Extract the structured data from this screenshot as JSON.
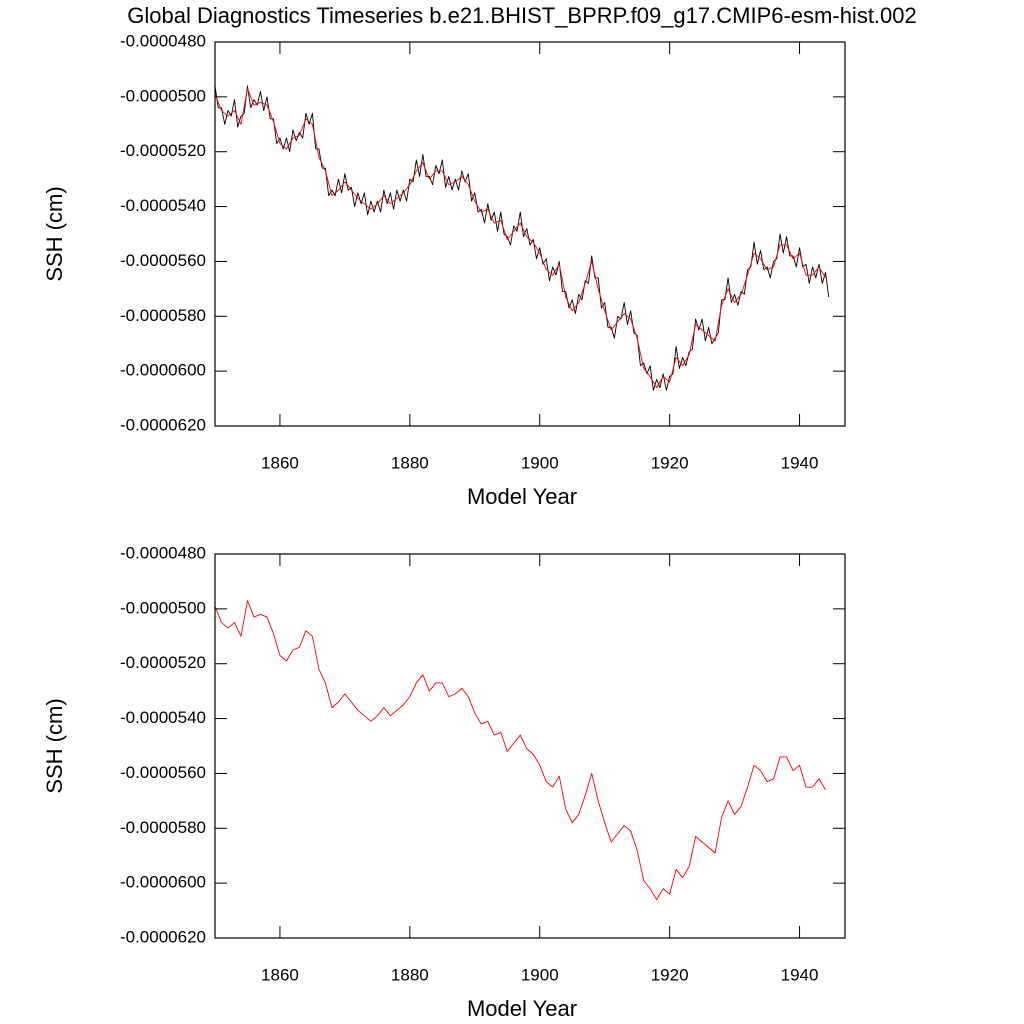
{
  "title": "Global Diagnostics Timeseries b.e21.BHIST_BPRP.f09_g17.CMIP6-esm-hist.002",
  "chart_data": [
    {
      "type": "line",
      "xlabel": "Model Year",
      "ylabel": "SSH (cm)",
      "xlim": [
        1850,
        1947
      ],
      "xticks": [
        1860,
        1880,
        1900,
        1920,
        1940
      ],
      "ylim": [
        -6.2e-05,
        -4.8e-05
      ],
      "yticks": [
        {
          "value": -6.2e-05,
          "label": "-0.0000620"
        },
        {
          "value": -6e-05,
          "label": "-0.0000600"
        },
        {
          "value": -5.8e-05,
          "label": "-0.0000580"
        },
        {
          "value": -5.6e-05,
          "label": "-0.0000560"
        },
        {
          "value": -5.4e-05,
          "label": "-0.0000540"
        },
        {
          "value": -5.2e-05,
          "label": "-0.0000520"
        },
        {
          "value": -5e-05,
          "label": "-0.0000500"
        },
        {
          "value": -4.8e-05,
          "label": "-0.0000480"
        }
      ],
      "series": [
        {
          "color": "#000000",
          "x": [
            1850,
            1850.5,
            1851,
            1851.5,
            1852,
            1852.5,
            1853,
            1853.5,
            1854,
            1854.5,
            1855,
            1855.5,
            1856,
            1856.5,
            1857,
            1857.5,
            1858,
            1858.5,
            1859,
            1859.5,
            1860,
            1860.5,
            1861,
            1861.5,
            1862,
            1862.5,
            1863,
            1863.5,
            1864,
            1864.5,
            1865,
            1865.5,
            1866,
            1866.5,
            1867,
            1867.5,
            1868,
            1868.5,
            1869,
            1869.5,
            1870,
            1870.5,
            1871,
            1871.5,
            1872,
            1872.5,
            1873,
            1873.5,
            1874,
            1874.5,
            1875,
            1875.5,
            1876,
            1876.5,
            1877,
            1877.5,
            1878,
            1878.5,
            1879,
            1879.5,
            1880,
            1880.5,
            1881,
            1881.5,
            1882,
            1882.5,
            1883,
            1883.5,
            1884,
            1884.5,
            1885,
            1885.5,
            1886,
            1886.5,
            1887,
            1887.5,
            1888,
            1888.5,
            1889,
            1889.5,
            1890,
            1890.5,
            1891,
            1891.5,
            1892,
            1892.5,
            1893,
            1893.5,
            1894,
            1894.5,
            1895,
            1895.5,
            1896,
            1896.5,
            1897,
            1897.5,
            1898,
            1898.5,
            1899,
            1899.5,
            1900,
            1900.5,
            1901,
            1901.5,
            1902,
            1902.5,
            1903,
            1903.5,
            1904,
            1904.5,
            1905,
            1905.5,
            1906,
            1906.5,
            1907,
            1907.5,
            1908,
            1908.5,
            1909,
            1909.5,
            1910,
            1910.5,
            1911,
            1911.5,
            1912,
            1912.5,
            1913,
            1913.5,
            1914,
            1914.5,
            1915,
            1915.5,
            1916,
            1916.5,
            1917,
            1917.5,
            1918,
            1918.5,
            1919,
            1919.5,
            1920,
            1920.5,
            1921,
            1921.5,
            1922,
            1922.5,
            1923,
            1923.5,
            1924,
            1924.5,
            1925,
            1925.5,
            1926,
            1926.5,
            1927,
            1927.5,
            1928,
            1928.5,
            1929,
            1929.5,
            1930,
            1930.5,
            1931,
            1931.5,
            1932,
            1932.5,
            1933,
            1933.5,
            1934,
            1934.5,
            1935,
            1935.5,
            1936,
            1936.5,
            1937,
            1937.5,
            1938,
            1938.5,
            1939,
            1939.5,
            1940,
            1940.5,
            1941,
            1941.5,
            1942,
            1942.5,
            1943,
            1943.5,
            1944,
            1944.5
          ],
          "values": [
            -4.96e-05,
            -5.04e-05,
            -5.04e-05,
            -5.1e-05,
            -5.05e-05,
            -5.07e-05,
            -5.01e-05,
            -5.11e-05,
            -5.07e-05,
            -5.06e-05,
            -4.96e-05,
            -5.04e-05,
            -5.01e-05,
            -5.03e-05,
            -4.98e-05,
            -5.05e-05,
            -5e-05,
            -5.08e-05,
            -5.08e-05,
            -5.17e-05,
            -5.15e-05,
            -5.19e-05,
            -5.15e-05,
            -5.2e-05,
            -5.12e-05,
            -5.16e-05,
            -5.13e-05,
            -5.15e-05,
            -5.06e-05,
            -5.1e-05,
            -5.06e-05,
            -5.19e-05,
            -5.19e-05,
            -5.26e-05,
            -5.26e-05,
            -5.36e-05,
            -5.34e-05,
            -5.36e-05,
            -5.3e-05,
            -5.35e-05,
            -5.28e-05,
            -5.34e-05,
            -5.33e-05,
            -5.4e-05,
            -5.35e-05,
            -5.39e-05,
            -5.35e-05,
            -5.43e-05,
            -5.38e-05,
            -5.42e-05,
            -5.38e-05,
            -5.42e-05,
            -5.34e-05,
            -5.39e-05,
            -5.35e-05,
            -5.41e-05,
            -5.34e-05,
            -5.38e-05,
            -5.34e-05,
            -5.38e-05,
            -5.3e-05,
            -5.31e-05,
            -5.23e-05,
            -5.29e-05,
            -5.21e-05,
            -5.29e-05,
            -5.29e-05,
            -5.32e-05,
            -5.25e-05,
            -5.28e-05,
            -5.23e-05,
            -5.33e-05,
            -5.29e-05,
            -5.34e-05,
            -5.3e-05,
            -5.34e-05,
            -5.27e-05,
            -5.31e-05,
            -5.28e-05,
            -5.38e-05,
            -5.35e-05,
            -5.42e-05,
            -5.41e-05,
            -5.46e-05,
            -5.39e-05,
            -5.45e-05,
            -5.42e-05,
            -5.49e-05,
            -5.42e-05,
            -5.5e-05,
            -5.51e-05,
            -5.54e-05,
            -5.47e-05,
            -5.49e-05,
            -5.42e-05,
            -5.51e-05,
            -5.48e-05,
            -5.54e-05,
            -5.52e-05,
            -5.59e-05,
            -5.55e-05,
            -5.61e-05,
            -5.59e-05,
            -5.67e-05,
            -5.62e-05,
            -5.65e-05,
            -5.6e-05,
            -5.71e-05,
            -5.71e-05,
            -5.77e-05,
            -5.74e-05,
            -5.79e-05,
            -5.72e-05,
            -5.74e-05,
            -5.67e-05,
            -5.68e-05,
            -5.58e-05,
            -5.66e-05,
            -5.66e-05,
            -5.77e-05,
            -5.75e-05,
            -5.84e-05,
            -5.84e-05,
            -5.88e-05,
            -5.8e-05,
            -5.81e-05,
            -5.75e-05,
            -5.83e-05,
            -5.78e-05,
            -5.86e-05,
            -5.87e-05,
            -5.98e-05,
            -5.97e-05,
            -6.01e-05,
            -5.98e-05,
            -6.07e-05,
            -6.03e-05,
            -6.06e-05,
            -6.01e-05,
            -6.07e-05,
            -6.02e-05,
            -6.01e-05,
            -5.91e-05,
            -5.99e-05,
            -5.95e-05,
            -5.98e-05,
            -5.93e-05,
            -5.92e-05,
            -5.81e-05,
            -5.85e-05,
            -5.81e-05,
            -5.89e-05,
            -5.84e-05,
            -5.9e-05,
            -5.88e-05,
            -5.86e-05,
            -5.74e-05,
            -5.74e-05,
            -5.66e-05,
            -5.75e-05,
            -5.72e-05,
            -5.76e-05,
            -5.71e-05,
            -5.72e-05,
            -5.63e-05,
            -5.62e-05,
            -5.53e-05,
            -5.61e-05,
            -5.56e-05,
            -5.63e-05,
            -5.62e-05,
            -5.66e-05,
            -5.6e-05,
            -5.59e-05,
            -5.5e-05,
            -5.57e-05,
            -5.51e-05,
            -5.58e-05,
            -5.58e-05,
            -5.62e-05,
            -5.55e-05,
            -5.62e-05,
            -5.61e-05,
            -5.68e-05,
            -5.62e-05,
            -5.66e-05,
            -5.61e-05,
            -5.68e-05,
            -5.64e-05,
            -5.73e-05
          ]
        },
        {
          "color": "#ff0000",
          "x": [
            1850,
            1851,
            1852,
            1853,
            1854,
            1855,
            1856,
            1857,
            1858,
            1859,
            1860,
            1861,
            1862,
            1863,
            1864,
            1865,
            1866,
            1867,
            1868,
            1869,
            1870,
            1871,
            1872,
            1873,
            1874,
            1875,
            1876,
            1877,
            1878,
            1879,
            1880,
            1881,
            1882,
            1883,
            1884,
            1885,
            1886,
            1887,
            1888,
            1889,
            1890,
            1891,
            1892,
            1893,
            1894,
            1895,
            1896,
            1897,
            1898,
            1899,
            1900,
            1901,
            1902,
            1903,
            1904,
            1905,
            1906,
            1907,
            1908,
            1909,
            1910,
            1911,
            1912,
            1913,
            1914,
            1915,
            1916,
            1917,
            1918,
            1919,
            1920,
            1921,
            1922,
            1923,
            1924,
            1925,
            1926,
            1927,
            1928,
            1929,
            1930,
            1931,
            1932,
            1933,
            1934,
            1935,
            1936,
            1937,
            1938,
            1939,
            1940,
            1941,
            1942,
            1943,
            1944
          ],
          "values": [
            -4.99e-05,
            -5.05e-05,
            -5.07e-05,
            -5.05e-05,
            -5.1e-05,
            -4.97e-05,
            -5.03e-05,
            -5.02e-05,
            -5.03e-05,
            -5.09e-05,
            -5.17e-05,
            -5.19e-05,
            -5.15e-05,
            -5.14e-05,
            -5.08e-05,
            -5.1e-05,
            -5.22e-05,
            -5.27e-05,
            -5.36e-05,
            -5.34e-05,
            -5.31e-05,
            -5.34e-05,
            -5.37e-05,
            -5.39e-05,
            -5.41e-05,
            -5.39e-05,
            -5.36e-05,
            -5.39e-05,
            -5.37e-05,
            -5.35e-05,
            -5.32e-05,
            -5.27e-05,
            -5.24e-05,
            -5.3e-05,
            -5.27e-05,
            -5.27e-05,
            -5.32e-05,
            -5.31e-05,
            -5.29e-05,
            -5.32e-05,
            -5.38e-05,
            -5.42e-05,
            -5.41e-05,
            -5.46e-05,
            -5.45e-05,
            -5.52e-05,
            -5.49e-05,
            -5.46e-05,
            -5.51e-05,
            -5.53e-05,
            -5.57e-05,
            -5.63e-05,
            -5.65e-05,
            -5.61e-05,
            -5.73e-05,
            -5.78e-05,
            -5.75e-05,
            -5.68e-05,
            -5.6e-05,
            -5.7e-05,
            -5.78e-05,
            -5.85e-05,
            -5.82e-05,
            -5.79e-05,
            -5.81e-05,
            -5.88e-05,
            -5.99e-05,
            -6.02e-05,
            -6.06e-05,
            -6.02e-05,
            -6.04e-05,
            -5.95e-05,
            -5.98e-05,
            -5.94e-05,
            -5.83e-05,
            -5.85e-05,
            -5.87e-05,
            -5.89e-05,
            -5.76e-05,
            -5.7e-05,
            -5.75e-05,
            -5.72e-05,
            -5.65e-05,
            -5.57e-05,
            -5.59e-05,
            -5.63e-05,
            -5.62e-05,
            -5.54e-05,
            -5.54e-05,
            -5.59e-05,
            -5.57e-05,
            -5.65e-05,
            -5.65e-05,
            -5.62e-05,
            -5.66e-05
          ]
        }
      ]
    },
    {
      "type": "line",
      "xlabel": "Model Year",
      "ylabel": "SSH (cm)",
      "xlim": [
        1850,
        1947
      ],
      "xticks": [
        1860,
        1880,
        1900,
        1920,
        1940
      ],
      "ylim": [
        -6.2e-05,
        -4.8e-05
      ],
      "yticks": [
        {
          "value": -6.2e-05,
          "label": "-0.0000620"
        },
        {
          "value": -6e-05,
          "label": "-0.0000600"
        },
        {
          "value": -5.8e-05,
          "label": "-0.0000580"
        },
        {
          "value": -5.6e-05,
          "label": "-0.0000560"
        },
        {
          "value": -5.4e-05,
          "label": "-0.0000540"
        },
        {
          "value": -5.2e-05,
          "label": "-0.0000520"
        },
        {
          "value": -5e-05,
          "label": "-0.0000500"
        },
        {
          "value": -4.8e-05,
          "label": "-0.0000480"
        }
      ],
      "series": [
        {
          "color": "#ff0000",
          "x": [
            1850,
            1851,
            1852,
            1853,
            1854,
            1855,
            1856,
            1857,
            1858,
            1859,
            1860,
            1861,
            1862,
            1863,
            1864,
            1865,
            1866,
            1867,
            1868,
            1869,
            1870,
            1871,
            1872,
            1873,
            1874,
            1875,
            1876,
            1877,
            1878,
            1879,
            1880,
            1881,
            1882,
            1883,
            1884,
            1885,
            1886,
            1887,
            1888,
            1889,
            1890,
            1891,
            1892,
            1893,
            1894,
            1895,
            1896,
            1897,
            1898,
            1899,
            1900,
            1901,
            1902,
            1903,
            1904,
            1905,
            1906,
            1907,
            1908,
            1909,
            1910,
            1911,
            1912,
            1913,
            1914,
            1915,
            1916,
            1917,
            1918,
            1919,
            1920,
            1921,
            1922,
            1923,
            1924,
            1925,
            1926,
            1927,
            1928,
            1929,
            1930,
            1931,
            1932,
            1933,
            1934,
            1935,
            1936,
            1937,
            1938,
            1939,
            1940,
            1941,
            1942,
            1943,
            1944
          ],
          "values": [
            -4.99e-05,
            -5.05e-05,
            -5.07e-05,
            -5.05e-05,
            -5.1e-05,
            -4.97e-05,
            -5.03e-05,
            -5.02e-05,
            -5.03e-05,
            -5.09e-05,
            -5.17e-05,
            -5.19e-05,
            -5.15e-05,
            -5.14e-05,
            -5.08e-05,
            -5.1e-05,
            -5.22e-05,
            -5.27e-05,
            -5.36e-05,
            -5.34e-05,
            -5.31e-05,
            -5.34e-05,
            -5.37e-05,
            -5.39e-05,
            -5.41e-05,
            -5.39e-05,
            -5.36e-05,
            -5.39e-05,
            -5.37e-05,
            -5.35e-05,
            -5.32e-05,
            -5.27e-05,
            -5.24e-05,
            -5.3e-05,
            -5.27e-05,
            -5.27e-05,
            -5.32e-05,
            -5.31e-05,
            -5.29e-05,
            -5.32e-05,
            -5.38e-05,
            -5.42e-05,
            -5.41e-05,
            -5.46e-05,
            -5.45e-05,
            -5.52e-05,
            -5.49e-05,
            -5.46e-05,
            -5.51e-05,
            -5.53e-05,
            -5.57e-05,
            -5.63e-05,
            -5.65e-05,
            -5.61e-05,
            -5.73e-05,
            -5.78e-05,
            -5.75e-05,
            -5.68e-05,
            -5.6e-05,
            -5.7e-05,
            -5.78e-05,
            -5.85e-05,
            -5.82e-05,
            -5.79e-05,
            -5.81e-05,
            -5.88e-05,
            -5.99e-05,
            -6.02e-05,
            -6.06e-05,
            -6.02e-05,
            -6.04e-05,
            -5.95e-05,
            -5.98e-05,
            -5.94e-05,
            -5.83e-05,
            -5.85e-05,
            -5.87e-05,
            -5.89e-05,
            -5.76e-05,
            -5.7e-05,
            -5.75e-05,
            -5.72e-05,
            -5.65e-05,
            -5.57e-05,
            -5.59e-05,
            -5.63e-05,
            -5.62e-05,
            -5.54e-05,
            -5.54e-05,
            -5.59e-05,
            -5.57e-05,
            -5.65e-05,
            -5.65e-05,
            -5.62e-05,
            -5.66e-05
          ]
        }
      ]
    }
  ]
}
